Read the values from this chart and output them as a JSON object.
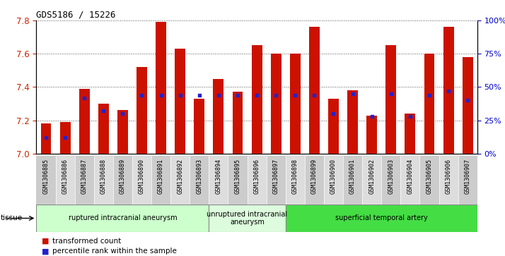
{
  "title": "GDS5186 / 15226",
  "samples": [
    "GSM1306885",
    "GSM1306886",
    "GSM1306887",
    "GSM1306888",
    "GSM1306889",
    "GSM1306890",
    "GSM1306891",
    "GSM1306892",
    "GSM1306893",
    "GSM1306894",
    "GSM1306895",
    "GSM1306896",
    "GSM1306897",
    "GSM1306898",
    "GSM1306899",
    "GSM1306900",
    "GSM1306901",
    "GSM1306902",
    "GSM1306903",
    "GSM1306904",
    "GSM1306905",
    "GSM1306906",
    "GSM1306907"
  ],
  "transformed_count": [
    7.18,
    7.19,
    7.39,
    7.3,
    7.26,
    7.52,
    7.79,
    7.63,
    7.33,
    7.45,
    7.37,
    7.65,
    7.6,
    7.6,
    7.76,
    7.33,
    7.38,
    7.23,
    7.65,
    7.24,
    7.6,
    7.76,
    7.58
  ],
  "percentile_rank": [
    12,
    12,
    42,
    32,
    30,
    44,
    44,
    44,
    44,
    44,
    44,
    44,
    44,
    44,
    44,
    30,
    45,
    28,
    45,
    28,
    44,
    47,
    40
  ],
  "groups": [
    {
      "label": "ruptured intracranial aneurysm",
      "start": 0,
      "end": 9,
      "color": "#ccffcc"
    },
    {
      "label": "unruptured intracranial\naneurysm",
      "start": 9,
      "end": 13,
      "color": "#ddfcdd"
    },
    {
      "label": "superficial temporal artery",
      "start": 13,
      "end": 23,
      "color": "#44dd44"
    }
  ],
  "ylim_left": [
    7.0,
    7.8
  ],
  "ylim_right": [
    0,
    100
  ],
  "bar_color": "#cc1100",
  "dot_color": "#2222cc",
  "plot_bg": "#ffffff",
  "title_color": "#000000",
  "left_tick_color": "#cc2200",
  "right_tick_color": "#0000cc",
  "grid_color": "#555555",
  "tick_bg_even": "#cccccc",
  "tick_bg_odd": "#dddddd"
}
